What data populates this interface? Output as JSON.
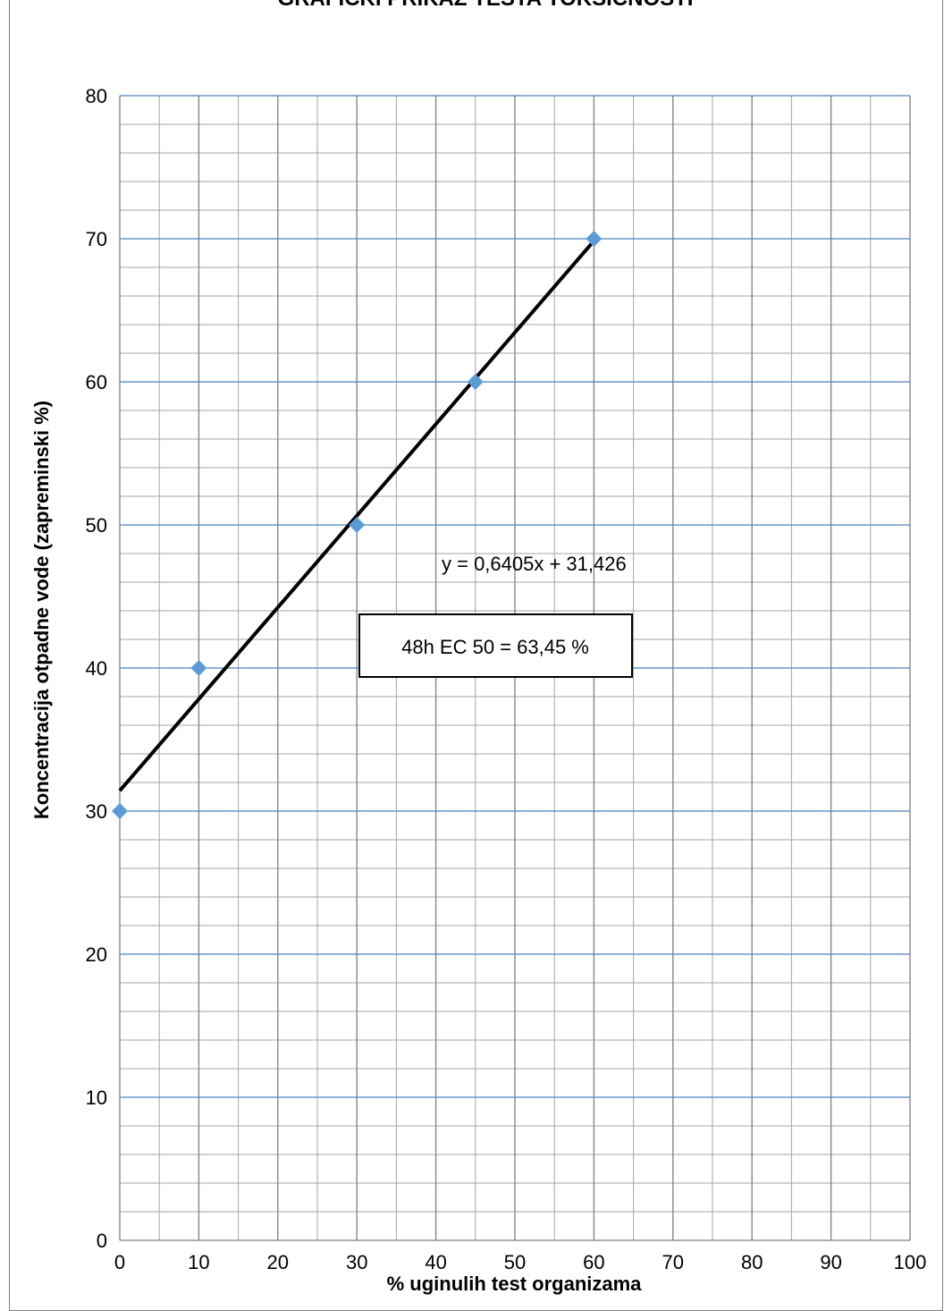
{
  "chart_data": {
    "type": "scatter",
    "title": "GRAFIČKI PRIKAZ TESTA TOKSIČNOSTI",
    "xlabel": "% uginulih test organizama",
    "ylabel": "Koncentracija otpadne vode (zapreminski %)",
    "xlim": [
      0,
      100
    ],
    "ylim": [
      0,
      80
    ],
    "x_ticks": [
      "0",
      "10",
      "20",
      "30",
      "40",
      "50",
      "60",
      "70",
      "80",
      "90",
      "100"
    ],
    "y_ticks": [
      "0",
      "10",
      "20",
      "30",
      "40",
      "50",
      "60",
      "70",
      "80"
    ],
    "grid": true,
    "series": [
      {
        "points": [
          {
            "x": 0,
            "y": 30
          },
          {
            "x": 10,
            "y": 40
          },
          {
            "x": 30,
            "y": 50
          },
          {
            "x": 45,
            "y": 60
          },
          {
            "x": 60,
            "y": 70
          }
        ],
        "color": "#5b9bd5",
        "marker": "diamond"
      }
    ],
    "trendline": {
      "slope": 0.6405,
      "intercept": 31.426,
      "x_range": [
        0,
        60
      ],
      "color": "#000000",
      "equation_label": "y = 0,6405x + 31,426"
    },
    "annotation": "48h EC 50 = 63,45 %",
    "colors": {
      "major_grid_vertical": "#7f7f7f",
      "major_grid_horizontal": "#4f81bd",
      "minor_grid": "#a6a6a6",
      "frame": "#808080"
    }
  }
}
